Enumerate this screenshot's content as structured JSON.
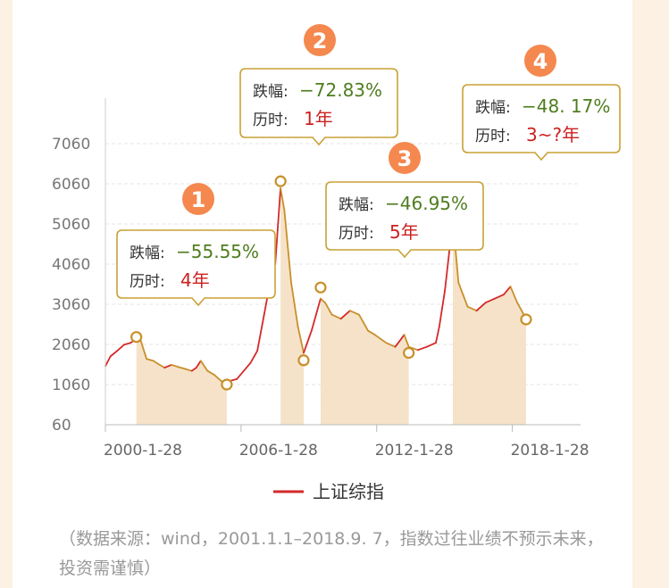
{
  "chart_data": {
    "type": "line",
    "title": "",
    "xlabel": "",
    "ylabel": "",
    "yticks": [
      60,
      1060,
      2060,
      3060,
      4060,
      5060,
      6060,
      7060
    ],
    "ylim": [
      60,
      7400
    ],
    "xticks": [
      "2000-1-28",
      "2006-1-28",
      "2012-1-28",
      "2018-1-28"
    ],
    "x_tick_years": [
      2000.08,
      2006.08,
      2012.08,
      2018.08
    ],
    "xlim": [
      2000.08,
      2021.1
    ],
    "grid": "horizontal dashed",
    "legend": {
      "position": "bottom",
      "entries": [
        "上证综指"
      ]
    },
    "series": [
      {
        "name": "上证综指",
        "x": [
          2000.08,
          2000.3,
          2000.6,
          2000.9,
          2001.2,
          2001.45,
          2001.6,
          2001.9,
          2002.2,
          2002.4,
          2002.7,
          2003.0,
          2003.3,
          2003.6,
          2003.9,
          2004.1,
          2004.3,
          2004.6,
          2004.9,
          2005.2,
          2005.45,
          2005.6,
          2005.9,
          2006.2,
          2006.5,
          2006.8,
          2007.1,
          2007.3,
          2007.6,
          2007.83,
          2008.0,
          2008.3,
          2008.6,
          2008.85,
          2009.2,
          2009.6,
          2009.8,
          2010.1,
          2010.5,
          2010.9,
          2011.3,
          2011.7,
          2012.0,
          2012.5,
          2012.9,
          2013.3,
          2013.5,
          2013.9,
          2014.3,
          2014.7,
          2014.85,
          2015.1,
          2015.45,
          2015.7,
          2015.9,
          2016.1,
          2016.5,
          2016.9,
          2017.3,
          2017.7,
          2018.0,
          2018.3,
          2018.69
        ],
        "y": [
          1520,
          1760,
          1900,
          2050,
          2100,
          2200,
          2230,
          1700,
          1650,
          1580,
          1480,
          1550,
          1500,
          1450,
          1400,
          1480,
          1650,
          1400,
          1300,
          1150,
          1060,
          1150,
          1200,
          1400,
          1600,
          1900,
          2800,
          3400,
          4100,
          5950,
          5400,
          3600,
          2500,
          1850,
          2400,
          3200,
          3100,
          2800,
          2700,
          2900,
          2800,
          2400,
          2300,
          2100,
          2000,
          2300,
          2000,
          1920,
          2000,
          2100,
          2500,
          3400,
          5166,
          3600,
          3300,
          3000,
          2900,
          3100,
          3200,
          3300,
          3500,
          3100,
          2700
        ]
      }
    ],
    "markers": [
      {
        "x": 2001.45,
        "y": 2245
      },
      {
        "x": 2005.45,
        "y": 1060
      },
      {
        "x": 2007.83,
        "y": 6124
      },
      {
        "x": 2008.85,
        "y": 1665
      },
      {
        "x": 2009.6,
        "y": 3478
      },
      {
        "x": 2013.5,
        "y": 1849
      },
      {
        "x": 2015.45,
        "y": 5178
      },
      {
        "x": 2018.69,
        "y": 2682
      }
    ],
    "shaded_periods": [
      [
        2001.45,
        2005.45
      ],
      [
        2007.83,
        2008.85
      ],
      [
        2009.6,
        2013.5
      ],
      [
        2015.45,
        2018.69
      ]
    ],
    "annotations": [
      {
        "num": "1",
        "drop_label": "跌幅:",
        "drop": "−55.55%",
        "dur_label": "历时:",
        "dur": "4年"
      },
      {
        "num": "2",
        "drop_label": "跌幅:",
        "drop": "−72.83%",
        "dur_label": "历时:",
        "dur": "1年"
      },
      {
        "num": "3",
        "drop_label": "跌幅:",
        "drop": "−46.95%",
        "dur_label": "历时:",
        "dur": "5年"
      },
      {
        "num": "4",
        "drop_label": "跌幅:",
        "drop": "−48. 17%",
        "dur_label": "历时:",
        "dur": "3~?年"
      }
    ],
    "colors": {
      "rise": "#d42a2a",
      "fall": "#c8902a",
      "shade": "#f5e2c8",
      "badge": "#f4884e",
      "box_border": "#c9a135"
    }
  },
  "source_note": "（数据来源：wind，2001.1.1–2018.9. 7，指数过往业绩不预示未来，投资需谨慎）"
}
